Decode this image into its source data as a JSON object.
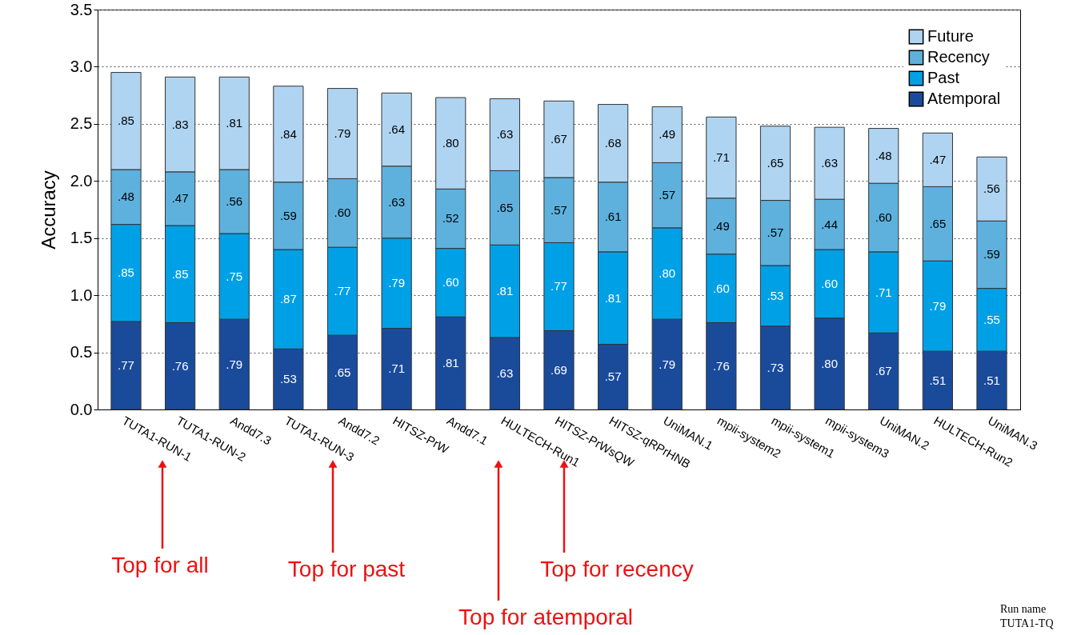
{
  "chart_data": {
    "type": "bar",
    "stacked": true,
    "ylabel": "Accuracy",
    "ylim": [
      0,
      3.5
    ],
    "yticks": [
      {
        "value": 0,
        "label": "0.0"
      },
      {
        "value": 0.5,
        "label": "0.5"
      },
      {
        "value": 1,
        "label": "1.0"
      },
      {
        "value": 1.5,
        "label": "1.5"
      },
      {
        "value": 2,
        "label": "2.0"
      },
      {
        "value": 2.5,
        "label": "2.5"
      },
      {
        "value": 3,
        "label": "3.0"
      },
      {
        "value": 3.5,
        "label": "3.5"
      }
    ],
    "grid": "y",
    "line_style": "dotted",
    "legend": "top right",
    "categories": [
      "TUTA1-RUN-1",
      "TUTA1-RUN-2",
      "Andd7.3",
      "TUTA1-RUN-3",
      "Andd7.2",
      "HITSZ-PrW",
      "Andd7.1",
      "HULTECH-Run1",
      "HITSZ-PrWsQW",
      "HITSZ-qRPrHNB",
      "UniMAN.1",
      "mpii-system2",
      "mpii-system1",
      "mpii-system3",
      "UniMAN.2",
      "HULTECH-Run2",
      "UniMAN.3"
    ],
    "series": [
      {
        "name": "Atemporal",
        "color": "#1a4b9b",
        "values": [
          0.77,
          0.76,
          0.79,
          0.53,
          0.65,
          0.71,
          0.81,
          0.63,
          0.69,
          0.57,
          0.79,
          0.76,
          0.73,
          0.8,
          0.67,
          0.51,
          0.51
        ],
        "value_labels": [
          ".77",
          ".76",
          ".79",
          ".53",
          ".65",
          ".71",
          ".81",
          ".63",
          ".69",
          ".57",
          ".79",
          ".76",
          ".73",
          ".80",
          ".67",
          ".51",
          ".51"
        ]
      },
      {
        "name": "Past",
        "color": "#00a0e6",
        "values": [
          0.85,
          0.85,
          0.75,
          0.87,
          0.77,
          0.79,
          0.6,
          0.81,
          0.77,
          0.81,
          0.8,
          0.6,
          0.53,
          0.6,
          0.71,
          0.79,
          0.55
        ],
        "value_labels": [
          ".85",
          ".85",
          ".75",
          ".87",
          ".77",
          ".79",
          ".60",
          ".81",
          ".77",
          ".81",
          ".80",
          ".60",
          ".53",
          ".60",
          ".71",
          ".79",
          ".55"
        ]
      },
      {
        "name": "Recency",
        "color": "#5eb1dd",
        "values": [
          0.48,
          0.47,
          0.56,
          0.59,
          0.6,
          0.63,
          0.52,
          0.65,
          0.57,
          0.61,
          0.57,
          0.49,
          0.57,
          0.44,
          0.6,
          0.65,
          0.59
        ],
        "value_labels": [
          ".48",
          ".47",
          ".56",
          ".59",
          ".60",
          ".63",
          ".52",
          ".65",
          ".57",
          ".61",
          ".57",
          ".49",
          ".57",
          ".44",
          ".60",
          ".65",
          ".59"
        ]
      },
      {
        "name": "Future",
        "color": "#aed4f2",
        "values": [
          0.85,
          0.83,
          0.81,
          0.84,
          0.79,
          0.64,
          0.8,
          0.63,
          0.67,
          0.68,
          0.49,
          0.71,
          0.65,
          0.63,
          0.48,
          0.47,
          0.56
        ],
        "value_labels": [
          ".85",
          ".83",
          ".81",
          ".84",
          ".79",
          ".64",
          ".80",
          ".63",
          ".67",
          ".68",
          ".49",
          ".71",
          ".65",
          ".63",
          ".48",
          ".47",
          ".56"
        ]
      }
    ],
    "annotations": [
      "Top for all",
      "Top for past",
      "Top for atemporal",
      "Top for recency",
      "Run name",
      "TUTA1-TQ"
    ]
  }
}
